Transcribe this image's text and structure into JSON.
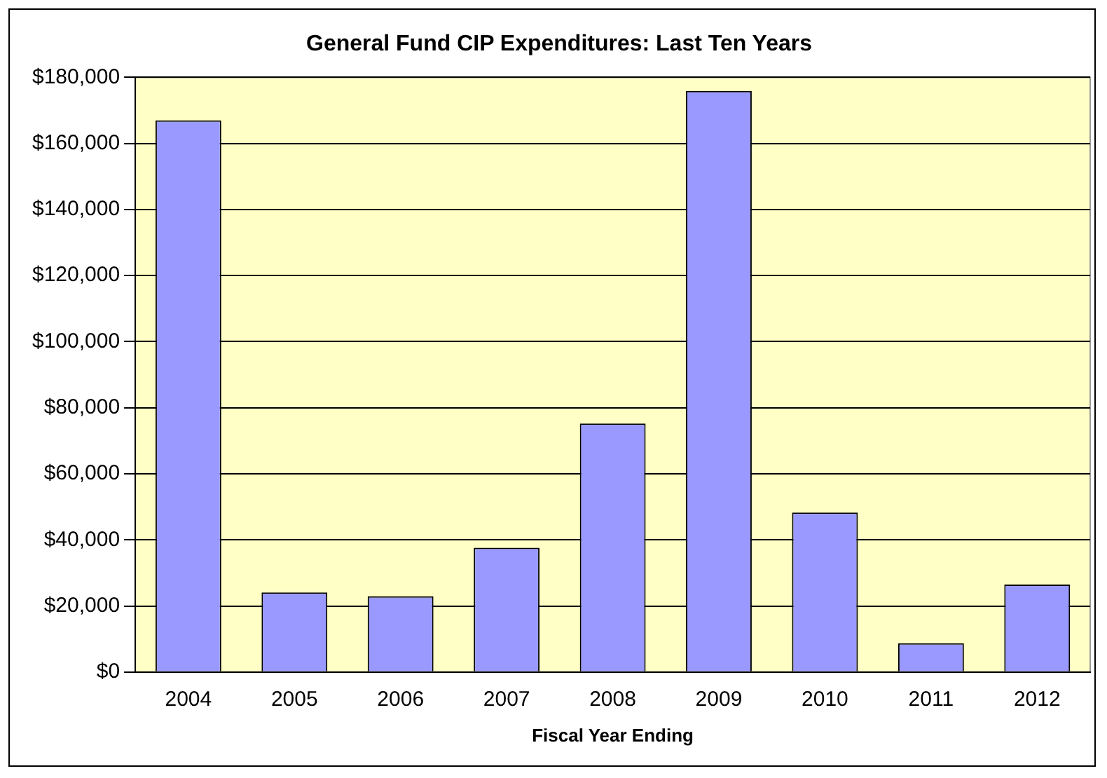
{
  "chart_data": {
    "type": "bar",
    "title": "General Fund CIP Expenditures: Last Ten Years",
    "xlabel": "Fiscal Year Ending",
    "categories": [
      "2004",
      "2005",
      "2006",
      "2007",
      "2008",
      "2009",
      "2010",
      "2011",
      "2012"
    ],
    "values": [
      167000,
      24100,
      22900,
      37600,
      75200,
      175900,
      48300,
      8700,
      26500
    ],
    "color": "#9999ff",
    "ylim": [
      0,
      180000
    ],
    "yticks": [
      {
        "value": 0,
        "label": "$0"
      },
      {
        "value": 20000,
        "label": "$20,000"
      },
      {
        "value": 40000,
        "label": "$40,000"
      },
      {
        "value": 60000,
        "label": "$60,000"
      },
      {
        "value": 80000,
        "label": "$80,000"
      },
      {
        "value": 100000,
        "label": "$100,000"
      },
      {
        "value": 120000,
        "label": "$120,000"
      },
      {
        "value": 140000,
        "label": "$140,000"
      },
      {
        "value": 160000,
        "label": "$160,000"
      },
      {
        "value": 180000,
        "label": "$180,000"
      }
    ],
    "grid": "y",
    "legend": false
  }
}
